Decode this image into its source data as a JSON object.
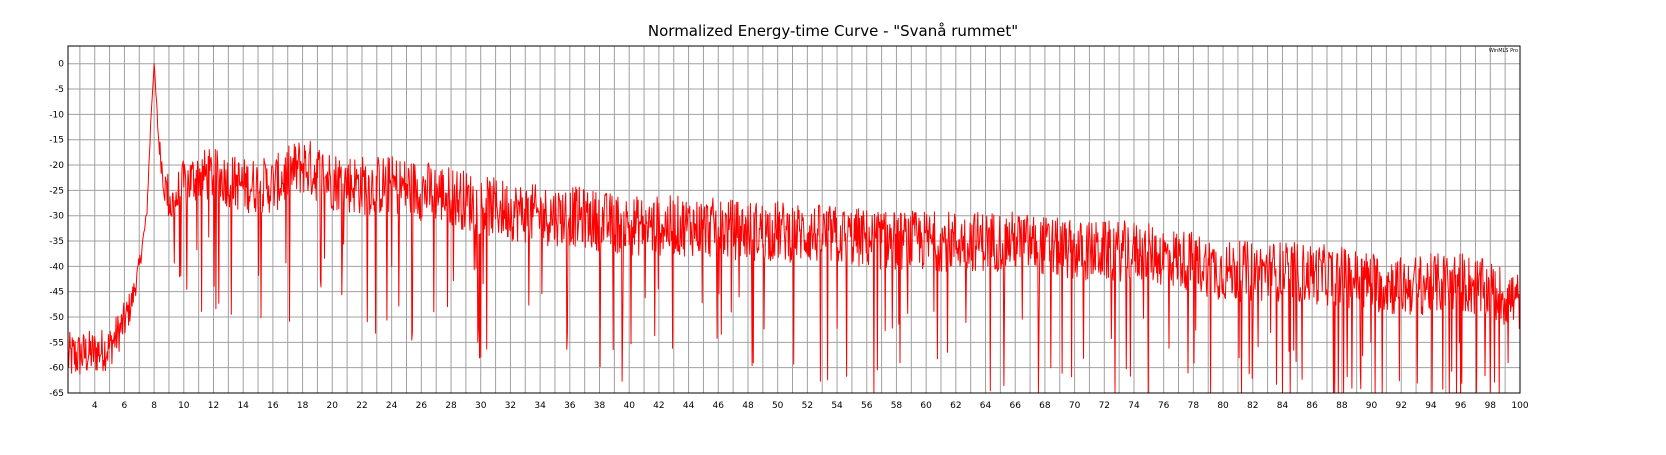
{
  "chart_data": {
    "type": "line",
    "title": "Normalized Energy-time Curve - \"Svanå rummet\"",
    "watermark": "WinMLS Pro",
    "xlabel": "",
    "ylabel": "",
    "xlim": [
      2.2,
      100
    ],
    "ylim": [
      -65,
      3.5
    ],
    "x_ticks": [
      4,
      6,
      8,
      10,
      12,
      14,
      16,
      18,
      20,
      22,
      24,
      26,
      28,
      30,
      32,
      34,
      36,
      38,
      40,
      42,
      44,
      46,
      48,
      50,
      52,
      54,
      56,
      58,
      60,
      62,
      64,
      66,
      68,
      70,
      72,
      74,
      76,
      78,
      80,
      82,
      84,
      86,
      88,
      90,
      92,
      94,
      96,
      98,
      100
    ],
    "y_ticks": [
      0,
      -5,
      -10,
      -15,
      -20,
      -25,
      -30,
      -35,
      -40,
      -45,
      -50,
      -55,
      -60,
      -65
    ],
    "grid": true,
    "legend": "none",
    "line_color": "#ff0000",
    "grid_color": "#a0a0a0",
    "envelope": {
      "x": [
        2.2,
        4,
        5,
        6,
        6.5,
        7,
        7.5,
        7.8,
        8,
        8.3,
        8.7,
        9.2,
        10,
        11,
        12,
        14,
        16,
        18,
        20,
        22,
        24,
        26,
        28,
        30,
        32,
        34,
        36,
        38,
        40,
        44,
        48,
        50,
        54,
        58,
        62,
        66,
        70,
        74,
        78,
        80,
        84,
        88,
        92,
        96,
        100
      ],
      "y": [
        -58,
        -57,
        -56,
        -51,
        -47,
        -40,
        -30,
        -10,
        0,
        -15,
        -24,
        -28,
        -24,
        -22,
        -22,
        -24,
        -24,
        -20,
        -23,
        -24,
        -24,
        -25,
        -26,
        -28,
        -29,
        -30,
        -30,
        -31,
        -32,
        -32,
        -33,
        -33,
        -34,
        -35,
        -35,
        -35,
        -37,
        -37,
        -39,
        -41,
        -41,
        -42,
        -44,
        -43,
        -47
      ]
    },
    "noise_amplitude": {
      "x": [
        2.2,
        6,
        7,
        8,
        9,
        20,
        40,
        60,
        80,
        100
      ],
      "y": [
        5,
        4,
        2,
        0.5,
        5,
        6,
        6,
        6,
        6,
        6
      ]
    },
    "sample_step": 0.04
  }
}
